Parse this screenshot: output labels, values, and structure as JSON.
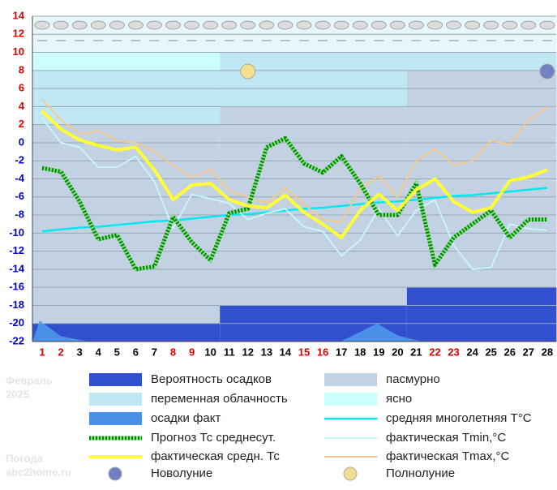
{
  "chart_data": {
    "type": "line",
    "categories": [
      "1",
      "2",
      "3",
      "4",
      "5",
      "6",
      "7",
      "8",
      "9",
      "10",
      "11",
      "12",
      "13",
      "14",
      "15",
      "16",
      "17",
      "18",
      "19",
      "20",
      "21",
      "22",
      "23",
      "24",
      "25",
      "26",
      "27",
      "28"
    ],
    "category_colors": [
      "#e00000",
      "#e00000",
      "#000000",
      "#000000",
      "#000000",
      "#000000",
      "#000000",
      "#e00000",
      "#e00000",
      "#000000",
      "#000000",
      "#000000",
      "#000000",
      "#000000",
      "#e00000",
      "#e00000",
      "#000000",
      "#000000",
      "#000000",
      "#000000",
      "#000000",
      "#e00000",
      "#e00000",
      "#000000",
      "#000000",
      "#000000",
      "#000000",
      "#000000"
    ],
    "ylim": [
      -22,
      14
    ],
    "yticks": [
      14,
      12,
      10,
      8,
      6,
      4,
      2,
      0,
      -2,
      -4,
      -6,
      -8,
      -10,
      -12,
      -14,
      -16,
      -18,
      -20,
      -22
    ],
    "ytick_color_positive": "#e00000",
    "ytick_color_other": "#0000cc",
    "grid": true,
    "series": [
      {
        "name": "средняя многолетняя T°C",
        "color": "#00e8f0",
        "width": 2.5,
        "values": [
          -9.8,
          -9.6,
          -9.4,
          -9.3,
          -9.1,
          -8.9,
          -8.7,
          -8.6,
          -8.4,
          -8.2,
          -8.0,
          -7.9,
          -7.7,
          -7.5,
          -7.3,
          -7.2,
          -7.0,
          -6.8,
          -6.6,
          -6.5,
          -6.3,
          -6.1,
          -5.9,
          -5.8,
          -5.6,
          -5.4,
          -5.2,
          -5.0
        ]
      },
      {
        "name": "фактическая Tmin,°C",
        "color": "#c8f4fa",
        "width": 2,
        "values": [
          2.7,
          0,
          -0.5,
          -2.7,
          -2.7,
          -1.5,
          -4.3,
          -9.5,
          -5.7,
          -6.2,
          -6.7,
          -8.5,
          -7.8,
          -7.3,
          -9.3,
          -9.8,
          -12.5,
          -10.8,
          -7.3,
          -10.3,
          -7.5,
          -6.3,
          -11.3,
          -14,
          -13.8,
          -9,
          -9.5,
          -9.7
        ]
      },
      {
        "name": "фактическая Tmax,°C",
        "color": "#f4c890",
        "width": 2,
        "values": [
          4.8,
          2.5,
          1,
          1.3,
          0.2,
          0,
          -1,
          -2.5,
          -3.8,
          -3,
          -5.3,
          -6,
          -6.7,
          -5,
          -6.8,
          -8.5,
          -8.8,
          -5,
          -3.7,
          -6,
          -2,
          -0.7,
          -2.5,
          -2,
          0.2,
          -0.2,
          2.5,
          4
        ]
      },
      {
        "name": "Прогноз Тс среднесут.",
        "color": "#008800",
        "width": 5,
        "dashed": true,
        "values": [
          -2.8,
          -3.2,
          -6.5,
          -10.7,
          -10.2,
          -14,
          -13.7,
          -8.2,
          -11,
          -13,
          -7.8,
          -7.3,
          -0.5,
          0.5,
          -2.3,
          -3.3,
          -1.5,
          -4.5,
          -8,
          -8,
          -4.5,
          -13.5,
          -10.5,
          -9,
          -7.5,
          -10.5,
          -8.5,
          -8.5
        ]
      },
      {
        "name": "фактическая средн. Тс",
        "color": "#ffff33",
        "width": 4,
        "values": [
          3.5,
          1.5,
          0.3,
          -0.3,
          -0.8,
          -0.5,
          -3,
          -6.3,
          -4.7,
          -4.5,
          -6.3,
          -7,
          -7.2,
          -5.8,
          -7.7,
          -9,
          -10.5,
          -7.5,
          -5.7,
          -7.5,
          -5.2,
          -4,
          -6.5,
          -7.7,
          -7.2,
          -4.2,
          -3.8,
          -3
        ]
      }
    ],
    "areas": [
      {
        "name": "Вероятность осадков",
        "color": "#3050d0"
      },
      {
        "name": "пасмурно",
        "color": "#c2d2e2"
      },
      {
        "name": "переменная облачность",
        "color": "#c0e8f4"
      },
      {
        "name": "ясно",
        "color": "#ccffff"
      },
      {
        "name": "осадки факт",
        "color": "#4a90e8"
      }
    ],
    "periods": [
      {
        "from_day": 1,
        "to_day": 10,
        "clear_top": 10,
        "partly_top": 8,
        "overcast_top": 2,
        "precip_top": -20
      },
      {
        "from_day": 11,
        "to_day": 20,
        "clear_top": null,
        "partly_top": 10,
        "overcast_top": 4,
        "precip_top": -18
      },
      {
        "from_day": 21,
        "to_day": 28,
        "clear_top": null,
        "partly_top": 10,
        "overcast_top": 8,
        "precip_top": -16
      }
    ],
    "moons": [
      {
        "name": "Новолуние",
        "day": 28,
        "color": "#7080c0"
      },
      {
        "name": "Полнолуние",
        "day": 12,
        "color": "#f0e090"
      }
    ],
    "month": "Февраль",
    "year": "2025",
    "site_title": "Погода",
    "site": "abc2home.ru"
  }
}
